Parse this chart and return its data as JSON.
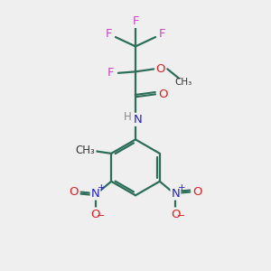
{
  "background_color": "#efefef",
  "bond_color": "#2d6e5a",
  "atom_colors": {
    "F": "#cc44cc",
    "O": "#dd2222",
    "N": "#2222cc",
    "H": "#888888",
    "C": "#333333"
  },
  "figsize": [
    3.0,
    3.0
  ],
  "dpi": 100
}
